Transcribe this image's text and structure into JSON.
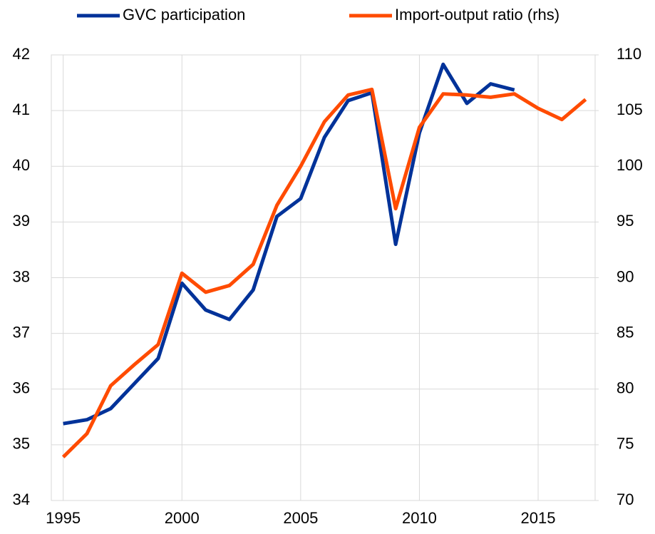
{
  "chart_data": {
    "type": "line",
    "x": [
      1995,
      1996,
      1997,
      1998,
      1999,
      2000,
      2001,
      2002,
      2003,
      2004,
      2005,
      2006,
      2007,
      2008,
      2009,
      2010,
      2011,
      2012,
      2013,
      2014,
      2015,
      2016,
      2017
    ],
    "series": [
      {
        "name": "GVC participation",
        "color": "#003299",
        "values": [
          35.38,
          35.45,
          35.65,
          36.1,
          36.55,
          37.9,
          37.42,
          37.25,
          37.78,
          39.1,
          39.42,
          40.52,
          41.18,
          41.32,
          38.6,
          40.6,
          41.83,
          41.13,
          41.48,
          41.37,
          null,
          null,
          null
        ]
      },
      {
        "name": "Import-output ratio (rhs)",
        "color": "#ff4b00",
        "axis": "y2",
        "values": [
          73.9,
          76.0,
          80.3,
          82.2,
          84.0,
          90.4,
          88.7,
          89.3,
          91.2,
          96.5,
          100.0,
          104.0,
          106.4,
          106.9,
          96.2,
          103.5,
          106.5,
          106.4,
          106.2,
          106.5,
          105.2,
          104.2,
          106.0
        ]
      }
    ],
    "xlim": [
      1994.5,
      2017.4
    ],
    "xticks": [
      1995,
      2000,
      2005,
      2010,
      2015
    ],
    "ylim": [
      34,
      42
    ],
    "yticks": [
      34,
      35,
      36,
      37,
      38,
      39,
      40,
      41,
      42
    ],
    "y2lim": [
      70,
      110
    ],
    "y2ticks": [
      70,
      75,
      80,
      85,
      90,
      95,
      100,
      105,
      110
    ],
    "grid": true,
    "legend": "top"
  }
}
